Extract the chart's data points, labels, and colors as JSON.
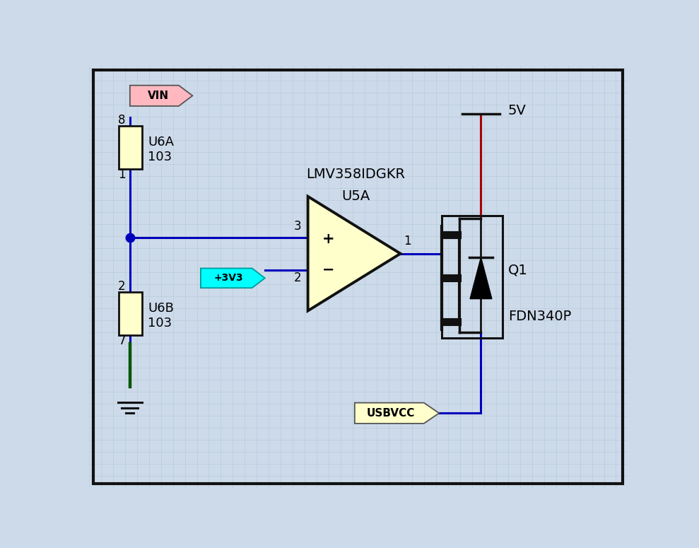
{
  "bg_color": "#cddaea",
  "grid_color": "#b8ccd8",
  "border_color": "#111111",
  "wire_blue": "#0000bb",
  "wire_red": "#aa0000",
  "wire_green": "#005500",
  "res_fill": "#ffffcc",
  "res_stroke": "#111111",
  "opamp_fill": "#ffffcc",
  "opamp_stroke": "#111111",
  "label_vin_fill": "#ffb8c0",
  "label_3v3_fill": "#00ffff",
  "label_usbvcc_fill": "#ffffcc",
  "lmv_text": "LMV358IDGKR",
  "u5a_text": "U5A",
  "u6a_text": "U6A",
  "u6b_text": "U6B",
  "r1_val": "103",
  "r2_val": "103",
  "q1_text": "Q1",
  "q1_type": "FDN340P",
  "v5_text": "5V",
  "vin_text": "VIN",
  "v3v3_text": "+3V3",
  "usbvcc_text": "USBVCC"
}
